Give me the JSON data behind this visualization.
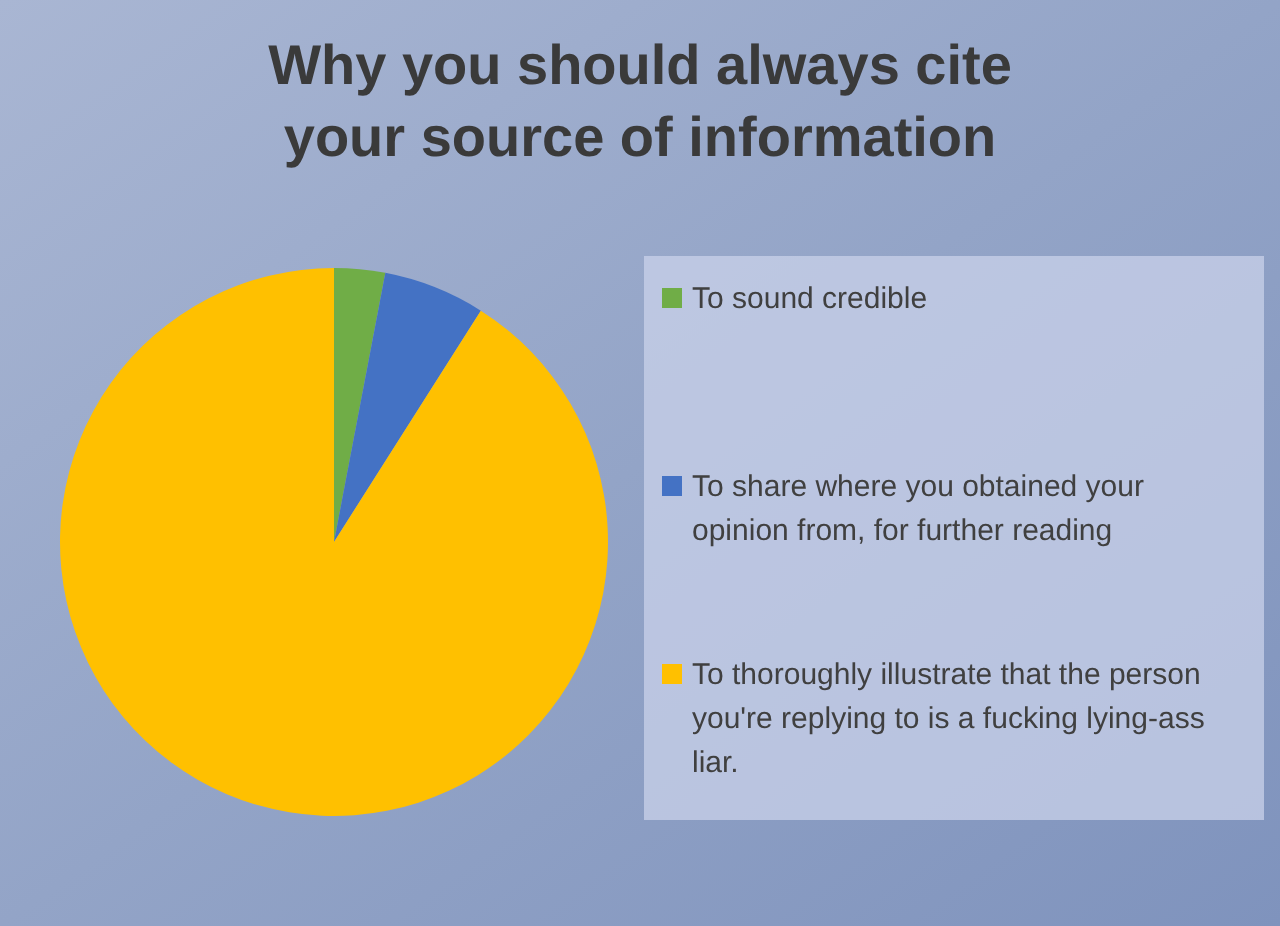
{
  "chart_data": {
    "type": "pie",
    "title": "Why you should always cite\nyour source of information",
    "categories": [
      "To sound credible",
      "To share where you obtained your opinion from, for further reading",
      "To thoroughly illustrate that the person you're replying to is a fucking lying-ass liar."
    ],
    "values": [
      3,
      6,
      91
    ],
    "colors": [
      "#70ad47",
      "#4472c4",
      "#ffc000"
    ],
    "legend": "right"
  }
}
